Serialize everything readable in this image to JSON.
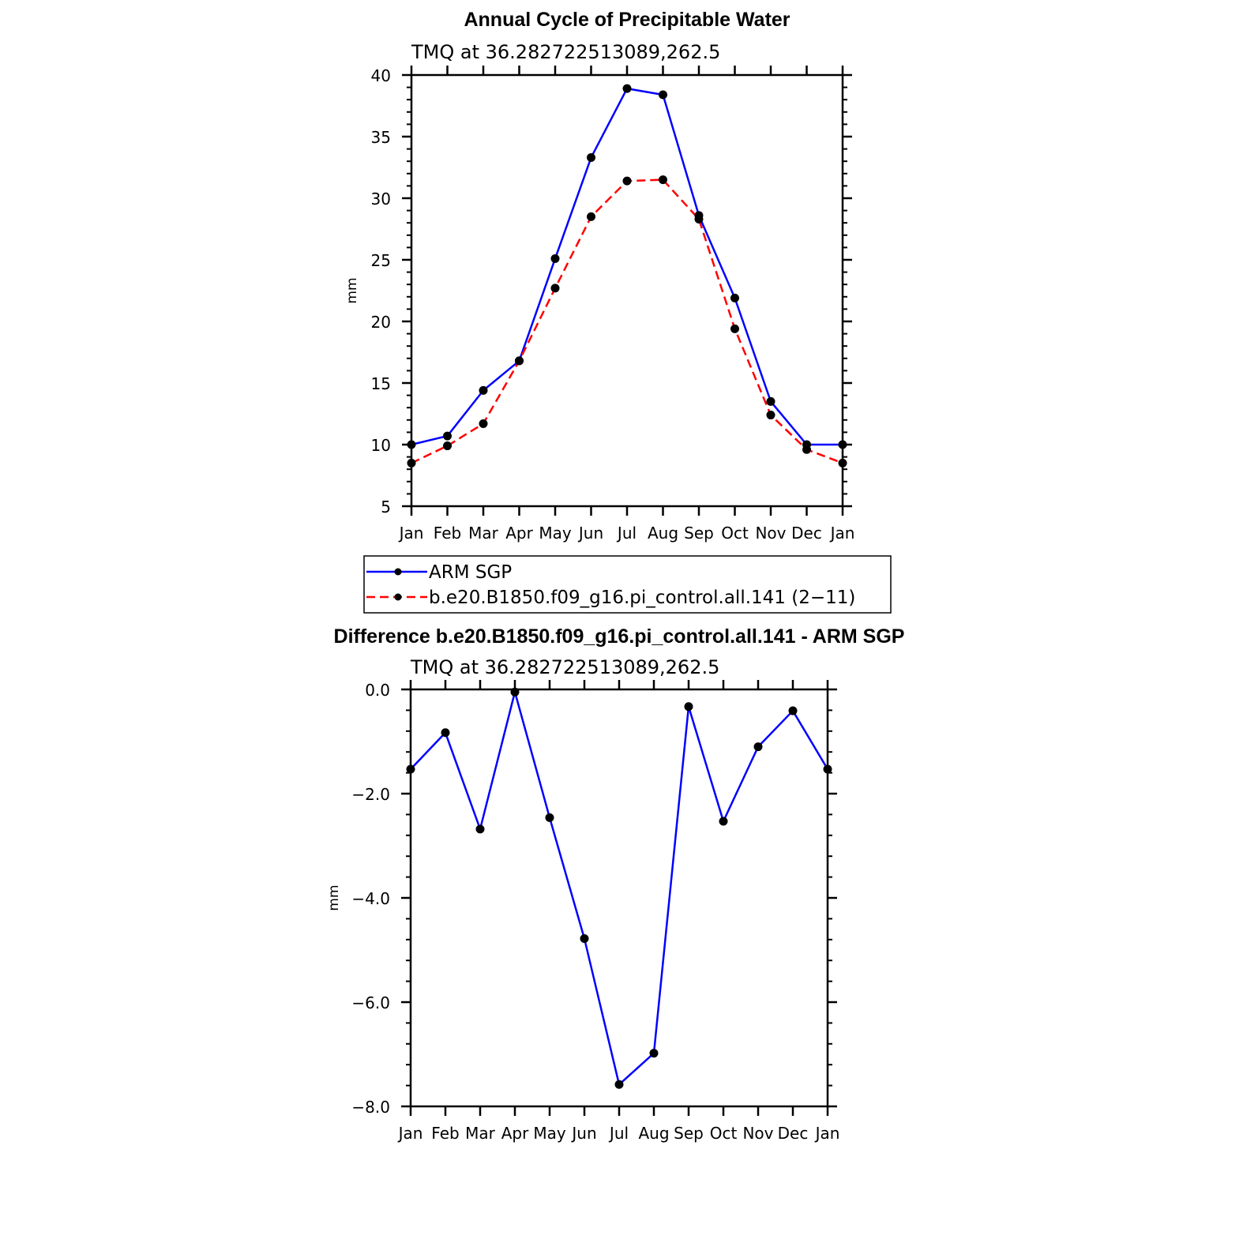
{
  "colors": {
    "arm": "#0000ff",
    "model": "#ff0000",
    "marker": "#000000",
    "axis": "#000000"
  },
  "legend": {
    "arm_label": "ARM SGP",
    "model_label": "b.e20.B1850.f09_g16.pi_control.all.141 (2−11)"
  },
  "chart_data": [
    {
      "type": "line",
      "title": "Annual Cycle of Precipitable Water",
      "subtitle": "TMQ at 36.282722513089,262.5",
      "xlabel": "",
      "ylabel": "mm",
      "categories": [
        "Jan",
        "Feb",
        "Mar",
        "Apr",
        "May",
        "Jun",
        "Jul",
        "Aug",
        "Sep",
        "Oct",
        "Nov",
        "Dec",
        "Jan"
      ],
      "ylim": [
        5,
        40
      ],
      "yticks": [
        5,
        10,
        15,
        20,
        25,
        30,
        35,
        40
      ],
      "ytick_labels": [
        "5",
        "10",
        "15",
        "20",
        "25",
        "30",
        "35",
        "40"
      ],
      "series": [
        {
          "name": "ARM SGP",
          "style": "solid",
          "color": "#0000ff",
          "values": [
            10.0,
            10.7,
            14.4,
            16.8,
            25.1,
            33.3,
            38.9,
            38.4,
            28.6,
            21.9,
            13.5,
            10.0,
            10.0
          ]
        },
        {
          "name": "b.e20.B1850.f09_g16.pi_control.all.141 (2−11)",
          "style": "dashed",
          "color": "#ff0000",
          "values": [
            8.5,
            9.9,
            11.7,
            16.8,
            22.7,
            28.5,
            31.4,
            31.5,
            28.3,
            19.4,
            12.4,
            9.6,
            8.5
          ]
        }
      ]
    },
    {
      "type": "line",
      "title": "Difference b.e20.B1850.f09_g16.pi_control.all.141 - ARM SGP",
      "subtitle": "TMQ at 36.282722513089,262.5",
      "xlabel": "",
      "ylabel": "mm",
      "categories": [
        "Jan",
        "Feb",
        "Mar",
        "Apr",
        "May",
        "Jun",
        "Jul",
        "Aug",
        "Sep",
        "Oct",
        "Nov",
        "Dec",
        "Jan"
      ],
      "ylim": [
        -8.0,
        0.0
      ],
      "yticks": [
        -8.0,
        -6.0,
        -4.0,
        -2.0,
        0.0
      ],
      "ytick_labels": [
        "−8.0",
        "−6.0",
        "−4.0",
        "−2.0",
        "0.0"
      ],
      "series": [
        {
          "name": "Difference",
          "style": "solid",
          "color": "#0000ff",
          "values": [
            -1.53,
            -0.83,
            -2.68,
            -0.05,
            -2.46,
            -4.78,
            -7.58,
            -6.98,
            -0.33,
            -2.53,
            -1.1,
            -0.41,
            -1.53
          ]
        }
      ]
    }
  ]
}
